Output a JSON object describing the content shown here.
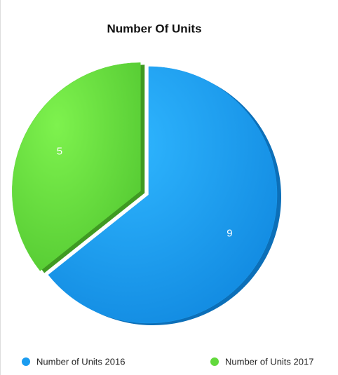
{
  "chart_data": {
    "type": "pie",
    "title": "Number Of Units",
    "categories": [
      "Number of Units 2016",
      "Number of Units 2017"
    ],
    "values": [
      9,
      5
    ],
    "colors": [
      "#1a9cf0",
      "#62d93c"
    ],
    "legend": "bottom"
  }
}
